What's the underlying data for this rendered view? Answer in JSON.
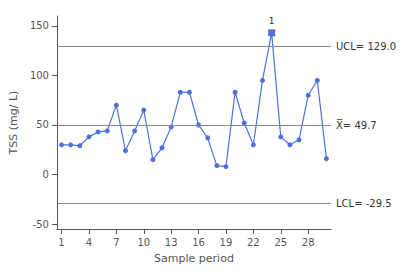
{
  "chart_data": {
    "type": "line",
    "x": [
      1,
      2,
      3,
      4,
      5,
      6,
      7,
      8,
      9,
      10,
      11,
      12,
      13,
      14,
      15,
      16,
      17,
      18,
      19,
      20,
      21,
      22,
      23,
      24,
      25,
      26,
      27,
      28,
      29,
      30
    ],
    "values": [
      30,
      30,
      29,
      38,
      43,
      44,
      70,
      24,
      44,
      65,
      15,
      27,
      48,
      83,
      83,
      50,
      37,
      9,
      8,
      83,
      52,
      30,
      95,
      143,
      38,
      30,
      35,
      80,
      95,
      16
    ],
    "marker": "circle",
    "xlabel": "Sample period",
    "ylabel": "TSS (mg/ L)",
    "xlim": [
      0.5,
      30.5
    ],
    "ylim": [
      -55,
      160
    ],
    "xticks": [
      1,
      4,
      7,
      10,
      13,
      16,
      19,
      22,
      25,
      28
    ],
    "yticks": [
      -50,
      0,
      50,
      100,
      150
    ],
    "grid": false,
    "reference_lines": [
      {
        "value": 129.0,
        "label": "UCL= 129.0"
      },
      {
        "value": 49.7,
        "label": "X̅= 49.7"
      },
      {
        "value": -29.5,
        "label": "LCL= -29.5"
      }
    ],
    "annotations": [
      {
        "x": 24,
        "text": "1",
        "marker": "square"
      }
    ]
  }
}
